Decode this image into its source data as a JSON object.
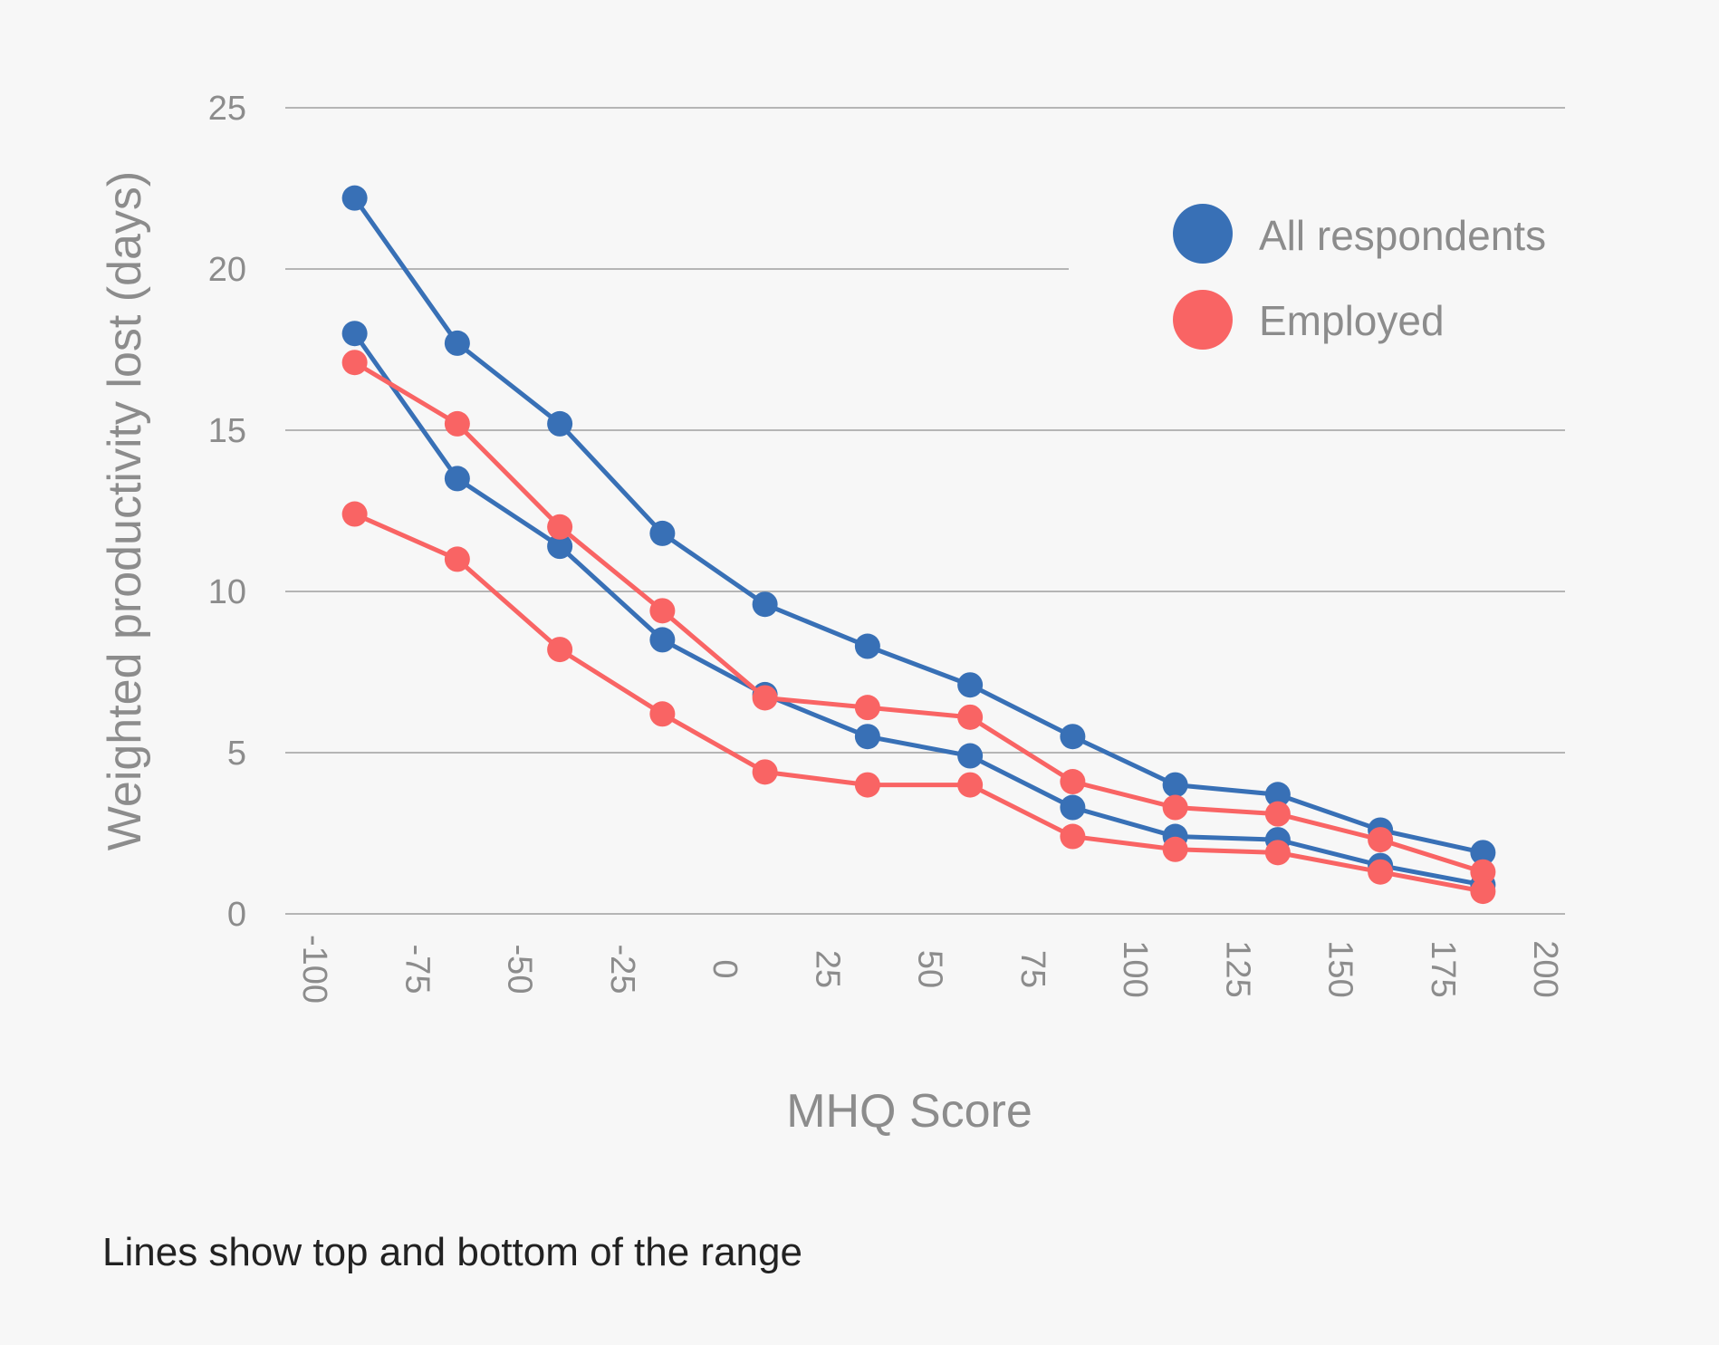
{
  "chart_data": {
    "type": "line",
    "xlabel": "MHQ Score",
    "ylabel": "Weighted productivity lost (days)",
    "xlim": [
      -100,
      200
    ],
    "ylim": [
      0,
      25
    ],
    "x_ticks": [
      -100,
      -75,
      -50,
      -25,
      0,
      25,
      50,
      75,
      100,
      125,
      150,
      175,
      200
    ],
    "y_ticks": [
      0,
      5,
      10,
      15,
      20,
      25
    ],
    "grid": true,
    "legend_position": "top-right",
    "note": "Lines show top and bottom of the range",
    "legend": [
      {
        "name": "All respondents",
        "color": "#3870b6"
      },
      {
        "name": "Employed",
        "color": "#f96464"
      }
    ],
    "x": [
      -87.5,
      -62.5,
      -37.5,
      -12.5,
      12.5,
      37.5,
      62.5,
      87.5,
      112.5,
      137.5,
      162.5,
      187.5
    ],
    "series": [
      {
        "group": "All respondents",
        "color": "#3870b6",
        "values": [
          22.2,
          17.7,
          15.2,
          11.8,
          9.6,
          8.3,
          7.1,
          5.5,
          4.0,
          3.7,
          2.6,
          1.9
        ]
      },
      {
        "group": "All respondents",
        "color": "#3870b6",
        "values": [
          18.0,
          13.5,
          11.4,
          8.5,
          6.8,
          5.5,
          4.9,
          3.3,
          2.4,
          2.3,
          1.5,
          0.9
        ]
      },
      {
        "group": "Employed",
        "color": "#f96464",
        "values": [
          17.1,
          15.2,
          12.0,
          9.4,
          6.7,
          6.4,
          6.1,
          4.1,
          3.3,
          3.1,
          2.3,
          1.3
        ]
      },
      {
        "group": "Employed",
        "color": "#f96464",
        "values": [
          12.4,
          11.0,
          8.2,
          6.2,
          4.4,
          4.0,
          4.0,
          2.4,
          2.0,
          1.9,
          1.3,
          0.7
        ]
      }
    ]
  }
}
